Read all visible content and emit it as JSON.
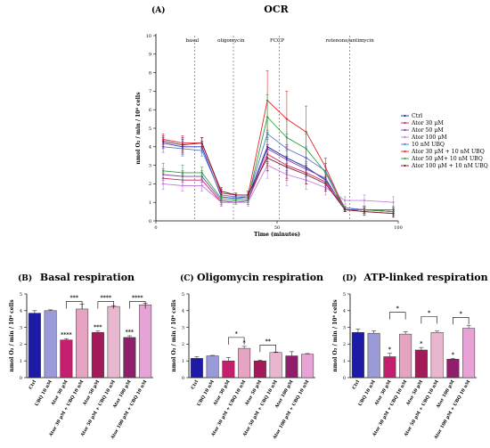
{
  "panel_labels": {
    "a": "(A)",
    "b": "(B)",
    "c": "(C)",
    "d": "(D)"
  },
  "chart_data": [
    {
      "type": "line",
      "title": "OCR",
      "xlabel": "Time (minutes)",
      "ylabel": "nmol O₂ / min / 10⁶ cells",
      "xlim": [
        0,
        100
      ],
      "ylim": [
        0,
        10
      ],
      "xticks": [
        "0",
        "50",
        "100"
      ],
      "yticks": [
        "0",
        "1",
        "2",
        "3",
        "4",
        "5",
        "6",
        "7",
        "8",
        "9",
        "10"
      ],
      "phases": [
        {
          "label": "basal",
          "x": 15
        },
        {
          "label": "oligomycin",
          "x": 31
        },
        {
          "label": "FCCP",
          "x": 50
        },
        {
          "label": "rotenone/antimycin",
          "x": 80
        }
      ],
      "phase_lines": [
        16,
        32,
        51,
        80
      ],
      "x": [
        3,
        11,
        19,
        27,
        33,
        38,
        46,
        54,
        62,
        70,
        78,
        86,
        98
      ],
      "series": [
        {
          "name": "Ctrl",
          "color": "#1f2fb3",
          "values": [
            4.2,
            4.0,
            4.0,
            1.3,
            1.2,
            1.3,
            4.0,
            3.4,
            2.9,
            2.2,
            0.7,
            0.6,
            0.5
          ],
          "err": [
            0.3,
            0.4,
            0.3,
            0.2,
            0.1,
            0.2,
            0.8,
            0.7,
            0.5,
            0.4,
            0.1,
            0.2,
            0.2
          ]
        },
        {
          "name": "Ator 30 μM",
          "color": "#d0206a",
          "values": [
            2.3,
            2.2,
            2.2,
            1.0,
            1.0,
            1.1,
            3.6,
            3.0,
            2.6,
            2.1,
            0.6,
            0.5,
            0.4
          ],
          "err": [
            0.3,
            0.3,
            0.3,
            0.2,
            0.1,
            0.2,
            0.9,
            0.8,
            0.6,
            0.4,
            0.1,
            0.2,
            0.2
          ]
        },
        {
          "name": "Ator 50 μM",
          "color": "#7c3fb0",
          "values": [
            2.5,
            2.4,
            2.4,
            1.1,
            1.0,
            1.1,
            3.9,
            3.3,
            2.8,
            2.3,
            0.6,
            0.6,
            0.5
          ],
          "err": [
            0.3,
            0.3,
            0.3,
            0.2,
            0.1,
            0.2,
            0.8,
            0.7,
            0.6,
            0.4,
            0.1,
            0.2,
            0.2
          ]
        },
        {
          "name": "Ator 100 μM",
          "color": "#c67ee0",
          "values": [
            2.0,
            1.9,
            1.9,
            1.0,
            1.0,
            1.0,
            3.0,
            2.5,
            2.2,
            1.8,
            1.1,
            1.1,
            1.0
          ],
          "err": [
            0.3,
            0.3,
            0.3,
            0.2,
            0.1,
            0.2,
            0.7,
            0.6,
            0.5,
            0.4,
            0.2,
            0.3,
            0.3
          ]
        },
        {
          "name": "10 nM UBQ",
          "color": "#5a76d6",
          "values": [
            4.0,
            3.9,
            3.8,
            1.4,
            1.3,
            1.3,
            4.7,
            3.9,
            3.4,
            2.7,
            0.7,
            0.6,
            0.6
          ],
          "err": [
            0.3,
            0.4,
            0.3,
            0.2,
            0.1,
            0.2,
            0.9,
            0.8,
            0.6,
            0.4,
            0.1,
            0.2,
            0.2
          ]
        },
        {
          "name": "Ator 30 μM + 10 nM UBQ",
          "color": "#e8252c",
          "values": [
            4.4,
            4.2,
            4.2,
            1.5,
            1.4,
            1.4,
            6.5,
            5.5,
            4.8,
            2.9,
            0.6,
            0.6,
            0.5
          ],
          "err": [
            0.3,
            0.4,
            0.3,
            0.2,
            0.1,
            0.2,
            1.6,
            1.5,
            1.4,
            0.5,
            0.1,
            0.2,
            0.2
          ]
        },
        {
          "name": "Ator 50 μM+ 10 nM UBQ",
          "color": "#2fa03a",
          "values": [
            2.7,
            2.6,
            2.6,
            1.2,
            1.1,
            1.2,
            5.6,
            4.5,
            3.9,
            2.6,
            0.6,
            0.6,
            0.5
          ],
          "err": [
            0.4,
            0.4,
            0.3,
            0.2,
            0.1,
            0.2,
            1.2,
            1.0,
            0.8,
            0.5,
            0.1,
            0.2,
            0.2
          ]
        },
        {
          "name": "Ator 100 μM + 10 nM UBQ",
          "color": "#7a1d2d",
          "values": [
            4.3,
            4.1,
            4.2,
            1.6,
            1.4,
            1.4,
            3.4,
            2.9,
            2.5,
            2.0,
            0.6,
            0.5,
            0.4
          ],
          "err": [
            0.3,
            0.4,
            0.3,
            0.2,
            0.1,
            0.2,
            0.7,
            0.6,
            0.5,
            0.4,
            0.1,
            0.2,
            0.2
          ]
        }
      ]
    },
    {
      "type": "bar",
      "title": "Basal respiration",
      "ylabel": "nmol O₂ / min / 10⁶ cells",
      "ylim": [
        0,
        5
      ],
      "yticks": [
        "0",
        "1",
        "2",
        "3",
        "4",
        "5"
      ],
      "categories": [
        "Ctrl",
        "UBQ 10 nM",
        "Ator 30 μM",
        "Ator 30 μM + UBQ 10 nM",
        "Ator 50 μM",
        "Ator 50 μM + UBQ 10 nM",
        "Ator 100 μM",
        "Ator 100 μM + UBQ 10 nM"
      ],
      "values": [
        3.85,
        4.0,
        2.25,
        4.1,
        2.7,
        4.25,
        2.4,
        4.35
      ],
      "errors": [
        0.15,
        0.05,
        0.08,
        0.3,
        0.08,
        0.05,
        0.1,
        0.08
      ],
      "stars": [
        "",
        "",
        "****",
        "",
        "***",
        "",
        "***",
        ""
      ],
      "brackets": [
        {
          "from": 2,
          "to": 3,
          "y": 4.55,
          "label": "***"
        },
        {
          "from": 4,
          "to": 5,
          "y": 4.55,
          "label": "****"
        },
        {
          "from": 6,
          "to": 7,
          "y": 4.55,
          "label": "****"
        }
      ]
    },
    {
      "type": "bar",
      "title": "Oligomycin respiration",
      "ylabel": "nmol O₂ / min / 10⁶ cells",
      "ylim": [
        0,
        5
      ],
      "yticks": [
        "0",
        "1",
        "2",
        "3",
        "4",
        "5"
      ],
      "categories": [
        "Ctrl",
        "UBQ 10 nM",
        "Ator 30 μM",
        "Ator 30 μM + UBQ 10 nM",
        "Ator 50 μM",
        "Ator 50 μM + UBQ 10 nM",
        "Ator 100 μM",
        "Ator 100 μM + UBQ 10 nM"
      ],
      "values": [
        1.15,
        1.3,
        1.0,
        1.75,
        1.0,
        1.5,
        1.3,
        1.4
      ],
      "errors": [
        0.1,
        0.03,
        0.2,
        0.12,
        0.05,
        0.03,
        0.25,
        0.04
      ],
      "stars": [
        "",
        "",
        "",
        "*",
        "",
        "",
        "",
        ""
      ],
      "brackets": [
        {
          "from": 2,
          "to": 3,
          "y": 2.4,
          "label": "*"
        },
        {
          "from": 4,
          "to": 5,
          "y": 1.95,
          "label": "**"
        }
      ]
    },
    {
      "type": "bar",
      "title": "ATP-linked respiration",
      "ylabel": "nmol O₂ / min / 10⁶ cells",
      "ylim": [
        0,
        5
      ],
      "yticks": [
        "0",
        "1",
        "2",
        "3",
        "4",
        "5"
      ],
      "categories": [
        "Ctrl",
        "UBQ 10 nM",
        "Ator 30 μM",
        "Ator 30 μM + UBQ 10 nM",
        "Ator 50 μM",
        "Ator 50 μM + UBQ 10 nM",
        "Ator 100 μM",
        "Ator 100 μM + UBQ 10 nM"
      ],
      "values": [
        2.7,
        2.65,
        1.25,
        2.6,
        1.65,
        2.7,
        1.1,
        2.95
      ],
      "errors": [
        0.2,
        0.15,
        0.2,
        0.15,
        0.15,
        0.08,
        0.05,
        0.15
      ],
      "stars": [
        "",
        "",
        "*",
        "",
        "*",
        "",
        "*",
        ""
      ],
      "brackets": [
        {
          "from": 2,
          "to": 3,
          "y": 3.9,
          "label": "*"
        },
        {
          "from": 4,
          "to": 5,
          "y": 3.65,
          "label": "*"
        },
        {
          "from": 6,
          "to": 7,
          "y": 3.6,
          "label": "*"
        }
      ]
    }
  ],
  "bar_colors": [
    "#1d1aa8",
    "#9b9ad9",
    "#c41f6e",
    "#e6a3c2",
    "#a31a58",
    "#e9b6d0",
    "#8f1f6a",
    "#e7a3d6"
  ]
}
